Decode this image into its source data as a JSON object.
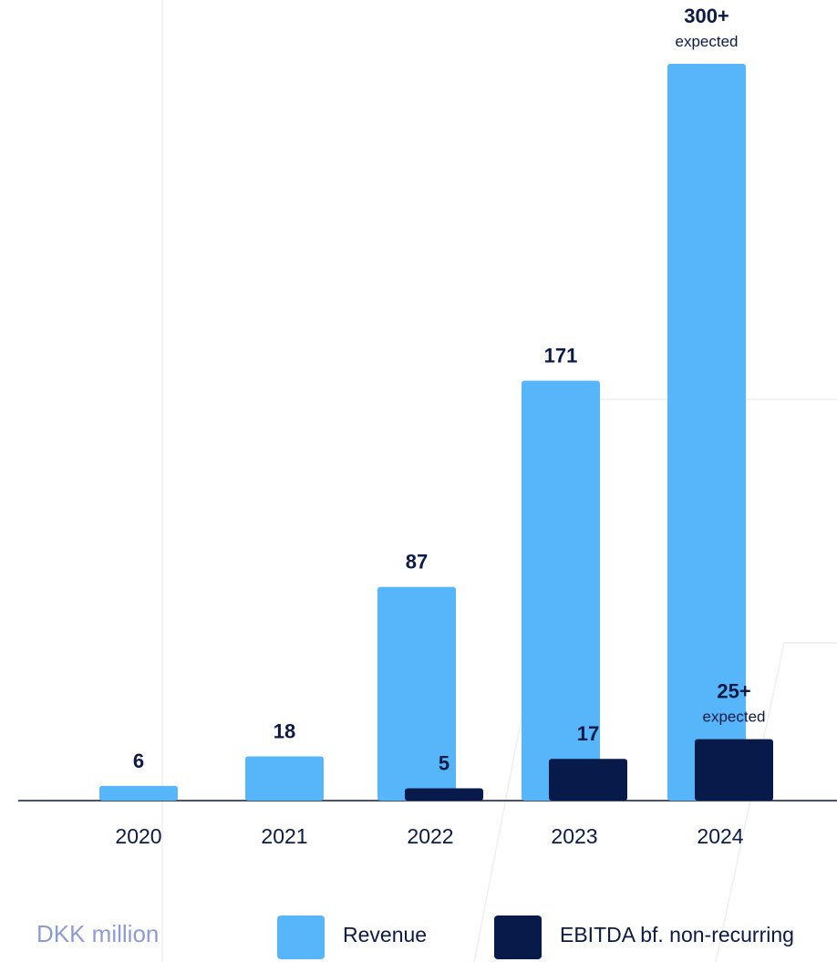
{
  "chart_data": {
    "type": "bar",
    "categories": [
      "2020",
      "2021",
      "2022",
      "2023",
      "2024"
    ],
    "series": [
      {
        "name": "Revenue",
        "color": "#56b6f9",
        "values": [
          6,
          18,
          87,
          171,
          300
        ],
        "labels": [
          "6",
          "18",
          "87",
          "171",
          "300+"
        ],
        "notes": [
          "",
          "",
          "",
          "",
          "expected"
        ]
      },
      {
        "name": "EBITDA bf. non-recurring",
        "color": "#081a4a",
        "values": [
          null,
          null,
          5,
          17,
          25
        ],
        "labels": [
          "",
          "",
          "5",
          "17",
          "25+"
        ],
        "notes": [
          "",
          "",
          "",
          "",
          "expected"
        ]
      }
    ],
    "unit": "DKK million",
    "legend_position": "bottom",
    "grid": false
  }
}
